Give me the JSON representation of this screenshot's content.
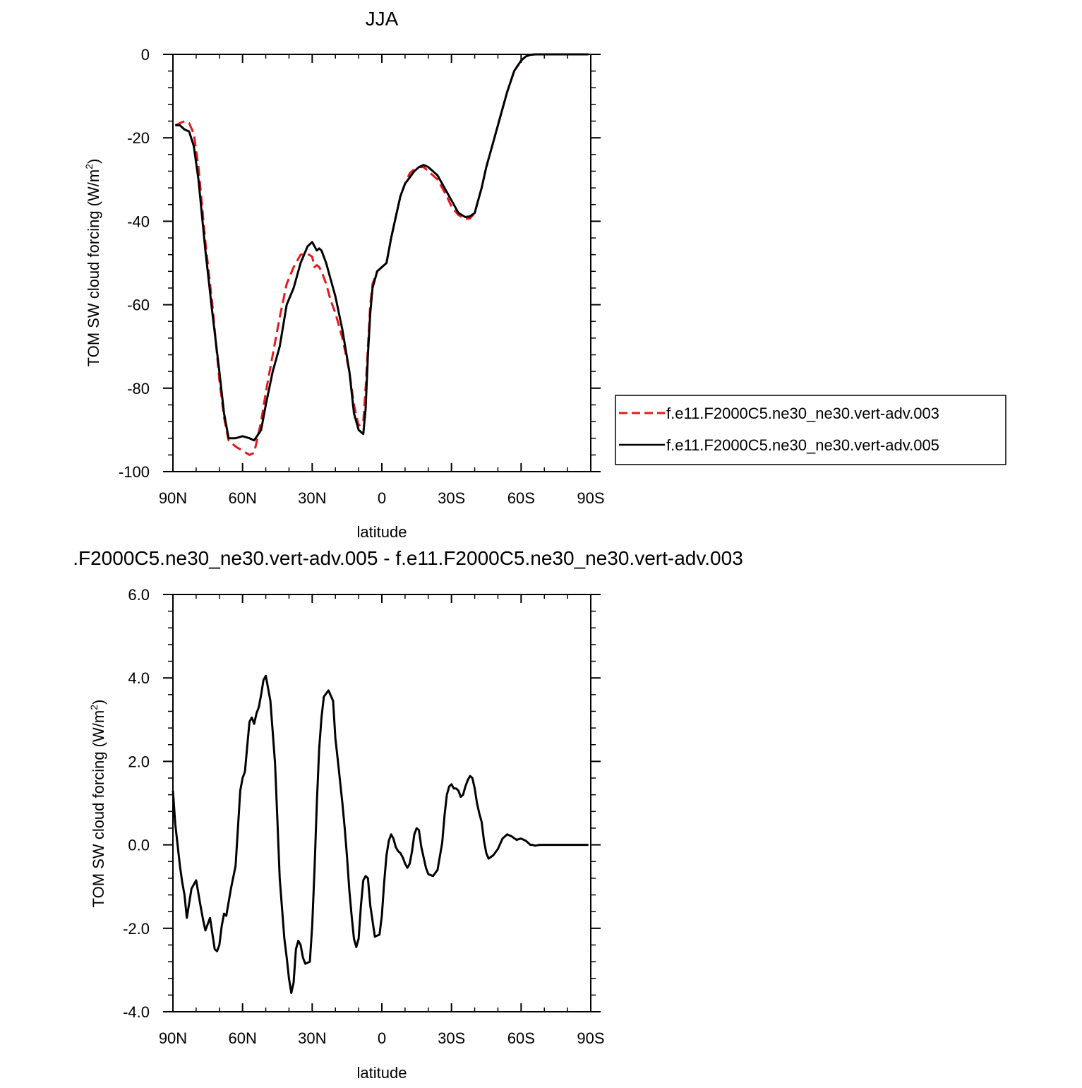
{
  "chart_data": [
    {
      "type": "line",
      "title": "JJA",
      "xlabel": "latitude",
      "ylabel": "TOM SW cloud forcing (W/m",
      "ylabel_sup": "2",
      "ylabel_close": ")",
      "xlim": [
        90,
        -90
      ],
      "ylim": [
        -100,
        0
      ],
      "x_ticks": [
        90,
        60,
        30,
        0,
        -30,
        -60,
        -90
      ],
      "x_tick_labels": [
        "90N",
        "60N",
        "30N",
        "0",
        "30S",
        "60S",
        "90S"
      ],
      "y_ticks": [
        0,
        -20,
        -40,
        -60,
        -80,
        -100
      ],
      "y_tick_labels": [
        "0",
        "-20",
        "-40",
        "-60",
        "-80",
        "-100"
      ],
      "legend_position": "right",
      "series": [
        {
          "name": "f.e11.F2000C5.ne30_ne30.vert-adv.003",
          "color": "#e41a1c",
          "dash": "dashed",
          "x": [
            89,
            87,
            85,
            83,
            81,
            79,
            76,
            73,
            70,
            68,
            66,
            63,
            60,
            57,
            55,
            52,
            50,
            47,
            44,
            41,
            38,
            35,
            32,
            30,
            29,
            28,
            27,
            26,
            24,
            22,
            20,
            17,
            14,
            12,
            10,
            8,
            7,
            6,
            5,
            4,
            2,
            0,
            -2,
            -4,
            -6,
            -8,
            -10,
            -12,
            -14,
            -16,
            -18,
            -20,
            -22,
            -24,
            -26,
            -28,
            -30,
            -33,
            -36,
            -38,
            -40,
            -41,
            -43,
            -45,
            -48,
            -51,
            -54,
            -57,
            -60,
            -62,
            -64,
            -66,
            -68,
            -70,
            -75,
            -80,
            -85,
            -89
          ],
          "y": [
            -17,
            -16.5,
            -16,
            -16.5,
            -19,
            -27,
            -45,
            -60,
            -78,
            -87,
            -92.5,
            -94,
            -95,
            -96,
            -95.5,
            -88,
            -81,
            -72,
            -63,
            -55,
            -51,
            -48,
            -47.8,
            -48.5,
            -51,
            -50.5,
            -51,
            -52,
            -55,
            -59,
            -62,
            -68,
            -76,
            -84,
            -89,
            -88,
            -80,
            -70,
            -60,
            -55,
            -52,
            -51,
            -50,
            -44,
            -39,
            -34,
            -31,
            -28.5,
            -27.5,
            -27,
            -27,
            -28,
            -29,
            -30,
            -32,
            -34,
            -36.5,
            -38.5,
            -39.5,
            -39.3,
            -38,
            -36,
            -32,
            -27,
            -21,
            -15,
            -9,
            -4,
            -1.5,
            -0.5,
            -0.1,
            0,
            0,
            0,
            0,
            0,
            0,
            0
          ]
        },
        {
          "name": "f.e11.F2000C5.ne30_ne30.vert-adv.005",
          "color": "#000000",
          "dash": "solid",
          "x": [
            89,
            87,
            85,
            83,
            81,
            79,
            76,
            73,
            70,
            68,
            66,
            63,
            60,
            57,
            55,
            52,
            50,
            47,
            44,
            41,
            38,
            35,
            32,
            30,
            29,
            28,
            27,
            26,
            24,
            22,
            20,
            17,
            14,
            12,
            10,
            8,
            7,
            6,
            5,
            4,
            2,
            0,
            -2,
            -4,
            -6,
            -8,
            -10,
            -12,
            -14,
            -16,
            -18,
            -20,
            -22,
            -24,
            -26,
            -28,
            -30,
            -33,
            -36,
            -38,
            -40,
            -41,
            -43,
            -45,
            -48,
            -51,
            -54,
            -57,
            -60,
            -62,
            -64,
            -66,
            -68,
            -70,
            -75,
            -80,
            -85,
            -89
          ],
          "y": [
            -17,
            -17,
            -18,
            -18.5,
            -22,
            -30,
            -47,
            -62,
            -76,
            -86,
            -92,
            -92,
            -91.5,
            -92,
            -92.5,
            -90,
            -84,
            -76,
            -70,
            -60,
            -56,
            -50,
            -46,
            -45,
            -46,
            -47,
            -46.5,
            -47,
            -50,
            -54,
            -58,
            -66,
            -76,
            -86,
            -90,
            -91,
            -85,
            -72,
            -62,
            -56,
            -52,
            -51,
            -50,
            -44,
            -39,
            -34,
            -31,
            -29.5,
            -28,
            -27,
            -26.5,
            -27,
            -28,
            -29,
            -31,
            -33,
            -35,
            -38,
            -39,
            -38.8,
            -38,
            -36,
            -32,
            -27,
            -21,
            -15,
            -9,
            -4,
            -1.5,
            -0.5,
            -0.1,
            0,
            0,
            0,
            0,
            0,
            0,
            0
          ]
        }
      ]
    },
    {
      "type": "line",
      "title": ".F2000C5.ne30_ne30.vert-adv.005 - f.e11.F2000C5.ne30_ne30.vert-adv.003",
      "xlabel": "latitude",
      "ylabel": "TOM SW cloud forcing (W/m",
      "ylabel_sup": "2",
      "ylabel_close": ")",
      "xlim": [
        90,
        -90
      ],
      "ylim": [
        -4,
        6
      ],
      "x_ticks": [
        90,
        60,
        30,
        0,
        -30,
        -60,
        -90
      ],
      "x_tick_labels": [
        "90N",
        "60N",
        "30N",
        "0",
        "30S",
        "60S",
        "90S"
      ],
      "y_ticks": [
        6,
        4,
        2,
        0,
        -2,
        -4
      ],
      "y_tick_labels": [
        "6.0",
        "4.0",
        "2.0",
        "0.0",
        "-2.0",
        "-4.0"
      ],
      "series": [
        {
          "color": "#000000",
          "dash": "solid",
          "x": [
            90,
            89,
            87,
            86,
            85,
            84,
            82,
            80,
            78,
            77,
            76,
            74,
            72,
            71,
            70,
            69,
            68,
            67,
            65,
            63,
            61,
            60,
            59,
            58,
            57,
            56,
            55,
            54,
            53,
            52,
            51,
            50,
            48,
            46,
            45,
            44,
            42,
            41,
            40,
            39,
            38,
            37,
            36,
            35,
            34,
            33,
            31,
            30,
            29,
            28,
            27,
            26,
            25,
            23,
            21,
            20,
            19,
            17,
            16,
            15,
            14,
            13,
            12,
            11,
            10,
            9,
            8,
            7,
            6,
            5,
            3,
            1,
            0,
            -1,
            -2,
            -3,
            -4,
            -5,
            -6,
            -7,
            -8,
            -9,
            -10,
            -11,
            -12,
            -13,
            -14,
            -15,
            -16,
            -17,
            -18,
            -19,
            -20,
            -22,
            -24,
            -26,
            -27,
            -28,
            -29,
            -30,
            -31,
            -32,
            -33,
            -34,
            -35,
            -36,
            -37,
            -38,
            -39,
            -40,
            -41,
            -42,
            -43,
            -44,
            -45,
            -46,
            -48,
            -50,
            -52,
            -54,
            -56,
            -58,
            -60,
            -62,
            -63,
            -64,
            -65,
            -66,
            -68,
            -70,
            -75,
            -80,
            -85,
            -89
          ],
          "y": [
            1.3,
            0.5,
            -0.5,
            -0.9,
            -1.2,
            -1.75,
            -1.05,
            -0.85,
            -1.5,
            -1.8,
            -2.05,
            -1.75,
            -2.5,
            -2.55,
            -2.4,
            -1.95,
            -1.65,
            -1.7,
            -1.05,
            -0.5,
            1.3,
            1.6,
            1.75,
            2.35,
            2.95,
            3.05,
            2.9,
            3.15,
            3.3,
            3.6,
            3.95,
            4.05,
            3.45,
            1.95,
            0.6,
            -0.8,
            -2.25,
            -2.7,
            -3.2,
            -3.55,
            -3.3,
            -2.5,
            -2.3,
            -2.4,
            -2.7,
            -2.85,
            -2.8,
            -1.95,
            -0.6,
            1.0,
            2.3,
            3.05,
            3.55,
            3.7,
            3.45,
            2.55,
            2.05,
            1.0,
            0.4,
            -0.3,
            -1.1,
            -1.7,
            -2.25,
            -2.45,
            -2.25,
            -1.45,
            -0.85,
            -0.75,
            -0.8,
            -1.45,
            -2.2,
            -2.15,
            -1.7,
            -0.9,
            -0.25,
            0.1,
            0.25,
            0.15,
            -0.05,
            -0.15,
            -0.2,
            -0.3,
            -0.45,
            -0.55,
            -0.45,
            -0.15,
            0.25,
            0.4,
            0.35,
            -0.05,
            -0.3,
            -0.55,
            -0.7,
            -0.75,
            -0.6,
            0.05,
            0.7,
            1.2,
            1.4,
            1.45,
            1.35,
            1.35,
            1.3,
            1.15,
            1.2,
            1.4,
            1.55,
            1.65,
            1.6,
            1.35,
            1.0,
            0.75,
            0.55,
            0.1,
            -0.2,
            -0.33,
            -0.25,
            -0.1,
            0.15,
            0.25,
            0.2,
            0.12,
            0.15,
            0.1,
            0.05,
            0.0,
            0.0,
            -0.02,
            0.0,
            0.0,
            0.0,
            0.0,
            0.0,
            0.0
          ]
        }
      ]
    }
  ]
}
